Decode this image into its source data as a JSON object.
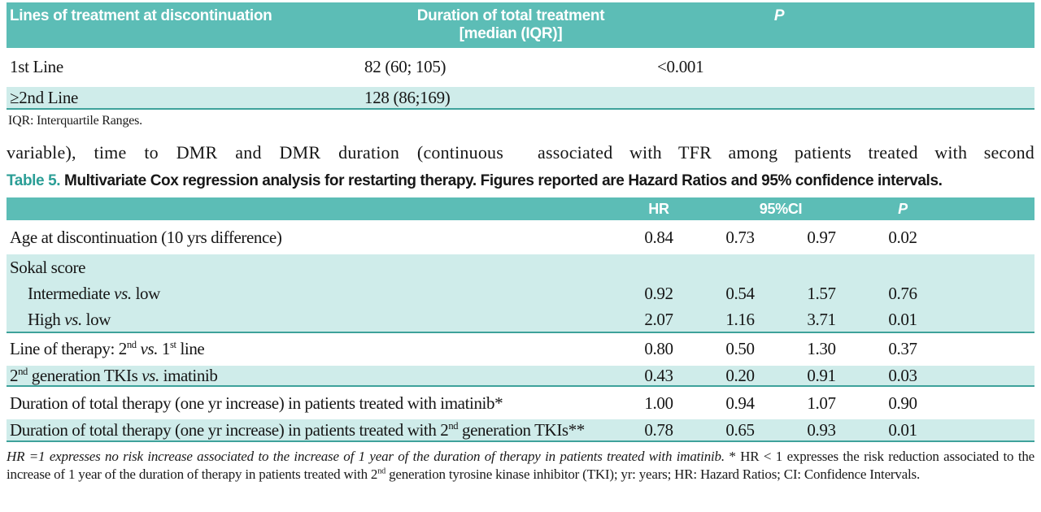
{
  "colors": {
    "header_teal": "#5cbdb6",
    "shaded_row_teal": "#cfecea",
    "rule_teal": "#3ea29b",
    "caption_label_teal": "#2b9e96"
  },
  "table1": {
    "col_headers": {
      "lines": "Lines of treatment at discontinuation",
      "duration_line1": "Duration of total treatment",
      "duration_line2": "[median (IQR)]",
      "p": "P"
    },
    "rows": [
      {
        "label": "1st Line",
        "duration": "82 (60; 105)",
        "p": "<0.001"
      },
      {
        "label": "≥2nd Line",
        "duration": "128 (86;169)",
        "p": ""
      }
    ],
    "footnote": "IQR: Interquartile Ranges."
  },
  "body_text": {
    "left_column": "variable), time to DMR and DMR duration (continuous",
    "right_column": "associated with TFR among patients treated with second"
  },
  "table5": {
    "caption_label": "Table 5.",
    "caption": "Multivariate Cox regression analysis for restarting therapy. Figures reported are Hazard Ratios and 95% confidence intervals.",
    "col_headers": {
      "hr": "HR",
      "ci": "95%CI",
      "p": "P"
    },
    "rows": [
      {
        "label": "Age at discontinuation (10 yrs difference)",
        "hr": "0.84",
        "ci_low": "0.73",
        "ci_high": "0.97",
        "p": "0.02"
      },
      {
        "label": "Sokal score",
        "hr": "",
        "ci_low": "",
        "ci_high": "",
        "p": ""
      },
      {
        "label": "Intermediate *vs.* low",
        "hr": "0.92",
        "ci_low": "0.54",
        "ci_high": "1.57",
        "p": "0.76"
      },
      {
        "label": "High *vs.* low",
        "hr": "2.07",
        "ci_low": "1.16",
        "ci_high": "3.71",
        "p": "0.01"
      },
      {
        "label": "Line of therapy: 2^{nd} *vs.* 1^{st} line",
        "hr": "0.80",
        "ci_low": "0.50",
        "ci_high": "1.30",
        "p": "0.37"
      },
      {
        "label": "2^{nd} generation TKIs *vs.* imatinib",
        "hr": "0.43",
        "ci_low": "0.20",
        "ci_high": "0.91",
        "p": "0.03"
      },
      {
        "label": "Duration of total therapy (one yr increase) in patients treated with imatinib*",
        "hr": "1.00",
        "ci_low": "0.94",
        "ci_high": "1.07",
        "p": "0.90"
      },
      {
        "label": "Duration of total therapy (one yr increase) in patients treated with 2^{nd} generation TKIs**",
        "hr": "0.78",
        "ci_low": "0.65",
        "ci_high": "0.93",
        "p": "0.01"
      }
    ],
    "footnote": "*HR =1 expresses no risk increase associated to the increase of 1 year of the duration of therapy in patients treated with imatinib. ** HR < 1 expresses the risk reduction associated to the increase of 1 year of the duration of therapy in patients treated with 2^{nd} generation tyrosine kinase inhibitor (TKI); yr: years; HR: Hazard Ratios; CI: Confidence Intervals."
  }
}
